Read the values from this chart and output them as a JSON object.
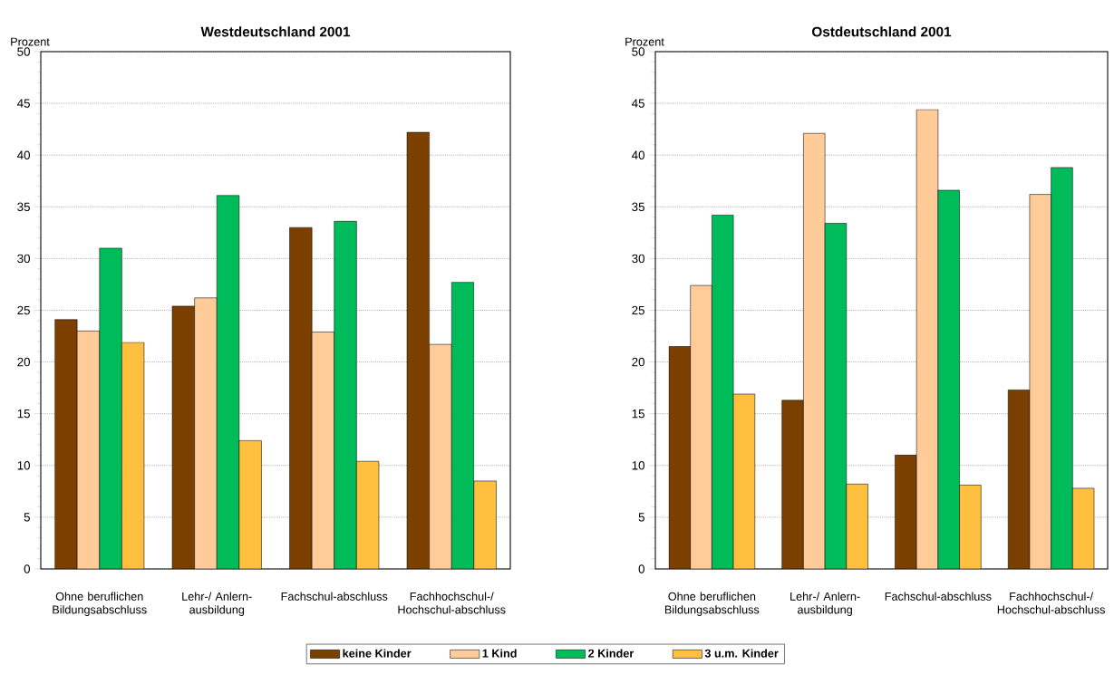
{
  "chart_data": [
    {
      "type": "bar",
      "title": "Westdeutschland 2001",
      "ylabel": "Prozent",
      "categories": [
        "Ohne beruflichen Bildungsabschluss",
        "Lehr-/ Anlern-ausbildung",
        "Fachschul-abschluss",
        "Fachhochschul-/ Hochschul-abschluss"
      ],
      "series": [
        {
          "name": "keine Kinder",
          "color": "#7b3f00",
          "values": [
            24.1,
            25.4,
            33.0,
            42.2
          ]
        },
        {
          "name": "1 Kind",
          "color": "#ffcc99",
          "values": [
            23.0,
            26.2,
            22.9,
            21.7
          ]
        },
        {
          "name": "2 Kinder",
          "color": "#00bb5a",
          "values": [
            31.0,
            36.1,
            33.6,
            27.7
          ]
        },
        {
          "name": "3 u.m. Kinder",
          "color": "#ffc040",
          "values": [
            21.9,
            12.4,
            10.4,
            8.5
          ]
        }
      ],
      "ylim": [
        0,
        50
      ],
      "yticks": [
        0,
        5,
        10,
        15,
        20,
        25,
        30,
        35,
        40,
        45,
        50
      ],
      "grid": "y",
      "legend": "bottom"
    },
    {
      "type": "bar",
      "title": "Ostdeutschland 2001",
      "ylabel": "Prozent",
      "categories": [
        "Ohne beruflichen Bildungsabschluss",
        "Lehr-/ Anlern-ausbildung",
        "Fachschul-abschluss",
        "Fachhochschul-/ Hochschul-abschluss"
      ],
      "series": [
        {
          "color": "#7b3f00",
          "values": [
            21.5,
            16.3,
            11.0,
            17.3
          ]
        },
        {
          "color": "#ffcc99",
          "values": [
            27.4,
            42.1,
            44.4,
            36.2
          ]
        },
        {
          "color": "#00bb5a",
          "values": [
            34.2,
            33.4,
            36.6,
            38.8
          ]
        },
        {
          "color": "#ffc040",
          "values": [
            16.9,
            8.2,
            8.1,
            7.8
          ]
        }
      ],
      "ylim": [
        0,
        50
      ],
      "yticks": [
        0,
        5,
        10,
        15,
        20,
        25,
        30,
        35,
        40,
        45,
        50
      ],
      "grid": "y"
    }
  ]
}
